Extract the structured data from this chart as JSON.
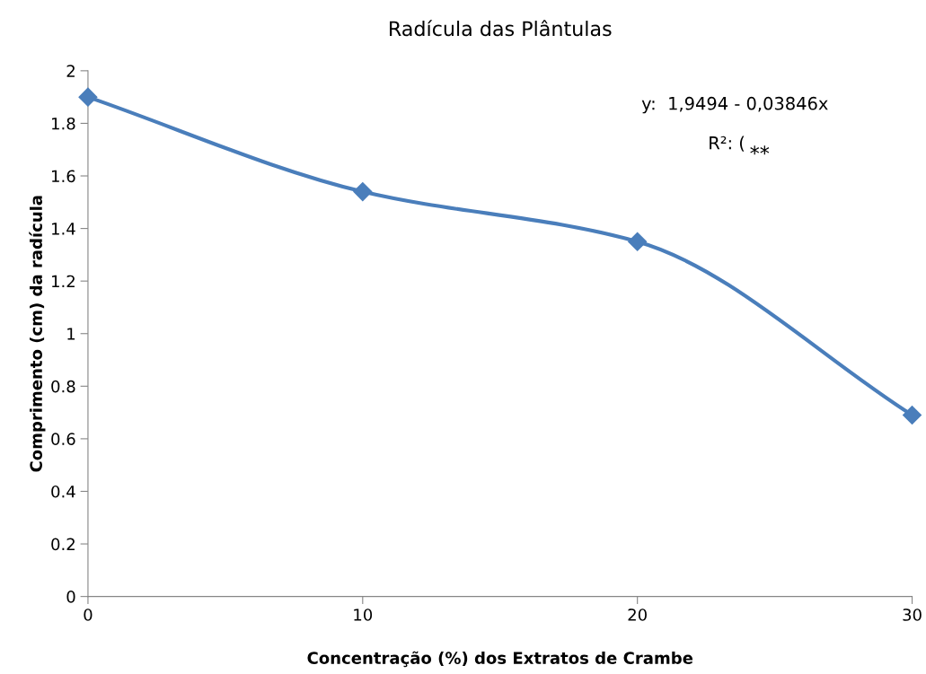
{
  "chart_data": {
    "type": "line",
    "title": "Radícula das Plântulas",
    "xlabel": "Concentração (%) dos Extratos de Crambe",
    "ylabel": "Comprimento (cm) da radícula",
    "x": [
      0,
      10,
      20,
      30
    ],
    "series": [
      {
        "color": "#4a7ebb",
        "values": [
          1.9,
          1.54,
          1.35,
          0.69
        ]
      }
    ],
    "xlim": [
      0,
      30
    ],
    "xticks": [
      0,
      10,
      20,
      30
    ],
    "ylim": [
      0,
      2
    ],
    "yticks": [
      0,
      0.2,
      0.4,
      0.6,
      0.8,
      1,
      1.2,
      1.4,
      1.6,
      1.8,
      2
    ],
    "marker": "diamond",
    "line_style": "solid",
    "grid": false,
    "legend": false,
    "annotations": [
      "y:  1,9494 - 0,03846x",
      "R²: (",
      "**"
    ]
  }
}
